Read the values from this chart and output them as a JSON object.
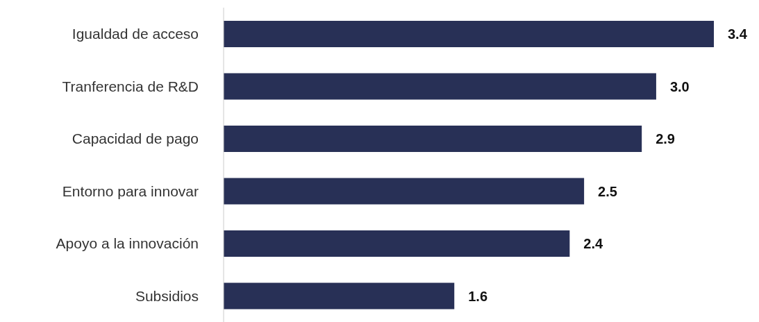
{
  "chart_data": {
    "type": "bar",
    "orientation": "horizontal",
    "categories": [
      "Igualdad de acceso",
      "Tranferencia de R&D",
      "Capacidad de pago",
      "Entorno para innovar",
      "Apoyo a la innovación",
      "Subsidios"
    ],
    "values": [
      3.4,
      3.0,
      2.9,
      2.5,
      2.4,
      1.6
    ],
    "value_labels": [
      "3.4",
      "3.0",
      "2.9",
      "2.5",
      "2.4",
      "1.6"
    ],
    "color": "#283056"
  }
}
